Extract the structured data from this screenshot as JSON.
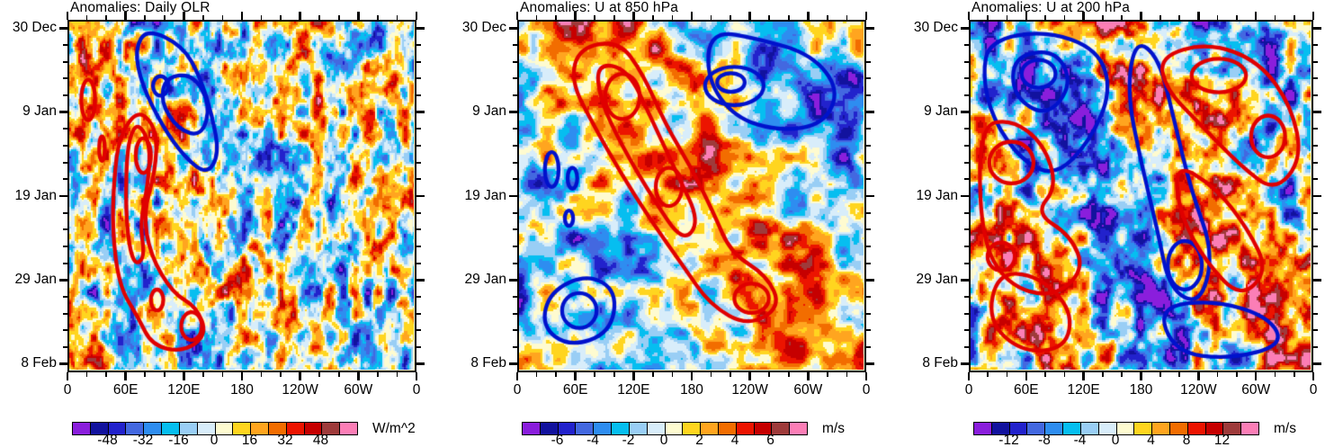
{
  "figure": {
    "background": "#ffffff",
    "text_color": "#000000"
  },
  "chart_data": {
    "type": "heatmap",
    "subtype": "hovmoller-filled-contour",
    "description": "Three time-longitude (Hovmoller) panels of daily anomalies shown as filled color contours with thick red (positive) and blue (negative) filtered-anomaly contour lines overlaid.",
    "x_axis": {
      "ticklabels": [
        "0",
        "60E",
        "120E",
        "180",
        "120W",
        "60W",
        "0"
      ],
      "minor_ticks_between_major": 2,
      "range_degrees": [
        0,
        360
      ]
    },
    "y_axis": {
      "ticklabels": [
        "30 Dec",
        "9 Jan",
        "19 Jan",
        "29 Jan",
        "8 Feb"
      ],
      "major_tick_interval_days": 10,
      "minor_tick_interval_days": 2,
      "orientation": "time increases downward"
    },
    "fill_palette": [
      "#8a1edc",
      "#12129e",
      "#2222cc",
      "#4368e0",
      "#2e8df0",
      "#06bef0",
      "#99cef5",
      "#d8edfa",
      "#fefbd0",
      "#ffd51f",
      "#ffa51f",
      "#f26d00",
      "#ec1400",
      "#c60000",
      "#9e3b3b",
      "#fb7eb6"
    ],
    "overlay_line_colors": {
      "positive": "#e00000",
      "negative": "#0012cc"
    },
    "panels": [
      {
        "title": "Anomalies: Daily OLR",
        "units": "W/m^2",
        "colorbar_ticklabels": [
          "-48",
          "-32",
          "-16",
          "0",
          "16",
          "32",
          "48"
        ],
        "colorbar_level_step": 8
      },
      {
        "title": "Anomalies: U at 850 hPa",
        "units": "m/s",
        "colorbar_ticklabels": [
          "-6",
          "-4",
          "-2",
          "0",
          "2",
          "4",
          "6"
        ],
        "colorbar_level_step": 1
      },
      {
        "title": "Anomalies: U at 200 hPa",
        "units": "m/s",
        "colorbar_ticklabels": [
          "-12",
          "-8",
          "-4",
          "0",
          "4",
          "8",
          "12"
        ],
        "colorbar_level_step": 2
      }
    ]
  }
}
